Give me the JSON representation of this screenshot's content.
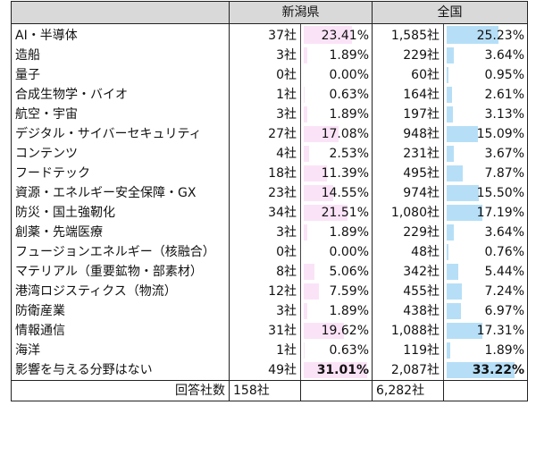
{
  "chart_data": {
    "type": "table",
    "title": "",
    "columns": [
      "",
      "新潟県 (社)",
      "新潟県 (%)",
      "全国 (社)",
      "全国 (%)"
    ],
    "groups": [
      "新潟県",
      "全国"
    ],
    "categories": [
      "AI・半導体",
      "造船",
      "量子",
      "合成生物学・バイオ",
      "航空・宇宙",
      "デジタル・サイバーセキュリティ",
      "コンテンツ",
      "フードテック",
      "資源・エネルギー安全保障・GX",
      "防災・国土強靭化",
      "創薬・先端医療",
      "フュージョンエネルギー（核融合）",
      "マテリアル（重要鉱物・部素材）",
      "港湾ロジスティクス（物流）",
      "防衛産業",
      "情報通信",
      "海洋",
      "影響を与える分野はない"
    ],
    "series": [
      {
        "name": "新潟県 社数",
        "values": [
          37,
          3,
          0,
          1,
          3,
          27,
          4,
          18,
          23,
          34,
          3,
          0,
          8,
          12,
          3,
          31,
          1,
          49
        ]
      },
      {
        "name": "新潟県 %",
        "values": [
          23.41,
          1.89,
          0.0,
          0.63,
          1.89,
          17.08,
          2.53,
          11.39,
          14.55,
          21.51,
          1.89,
          0.0,
          5.06,
          7.59,
          1.89,
          19.62,
          0.63,
          31.01
        ]
      },
      {
        "name": "全国 社数",
        "values": [
          1585,
          229,
          60,
          164,
          197,
          948,
          231,
          495,
          974,
          1080,
          229,
          48,
          342,
          455,
          438,
          1088,
          119,
          2087
        ]
      },
      {
        "name": "全国 %",
        "values": [
          25.23,
          3.64,
          0.95,
          2.61,
          3.13,
          15.09,
          3.67,
          7.87,
          15.5,
          17.19,
          3.64,
          0.76,
          5.44,
          7.24,
          6.97,
          17.31,
          1.89,
          33.22
        ]
      }
    ],
    "totals": {
      "label": "回答社数",
      "pref": 158,
      "national": 6282
    },
    "colors": {
      "pref_bar": "#fbe3f7",
      "national_bar": "#b6dff7",
      "header_bg": "#d9d9d9"
    }
  },
  "header": {
    "pref": "新潟県",
    "national": "全国"
  },
  "rows": [
    {
      "label": "AI・半導体",
      "pc": "37社",
      "pp": "23.41%",
      "pv": 23.41,
      "nc": "1,585社",
      "np": "25.23%",
      "nv": 25.23
    },
    {
      "label": "造船",
      "pc": "3社",
      "pp": "1.89%",
      "pv": 1.89,
      "nc": "229社",
      "np": "3.64%",
      "nv": 3.64
    },
    {
      "label": "量子",
      "pc": "0社",
      "pp": "0.00%",
      "pv": 0,
      "nc": "60社",
      "np": "0.95%",
      "nv": 0.95
    },
    {
      "label": "合成生物学・バイオ",
      "pc": "1社",
      "pp": "0.63%",
      "pv": 0.63,
      "nc": "164社",
      "np": "2.61%",
      "nv": 2.61
    },
    {
      "label": "航空・宇宙",
      "pc": "3社",
      "pp": "1.89%",
      "pv": 1.89,
      "nc": "197社",
      "np": "3.13%",
      "nv": 3.13
    },
    {
      "label": "デジタル・サイバーセキュリティ",
      "pc": "27社",
      "pp": "17.08%",
      "pv": 17.08,
      "nc": "948社",
      "np": "15.09%",
      "nv": 15.09
    },
    {
      "label": "コンテンツ",
      "pc": "4社",
      "pp": "2.53%",
      "pv": 2.53,
      "nc": "231社",
      "np": "3.67%",
      "nv": 3.67
    },
    {
      "label": "フードテック",
      "pc": "18社",
      "pp": "11.39%",
      "pv": 11.39,
      "nc": "495社",
      "np": "7.87%",
      "nv": 7.87
    },
    {
      "label": "資源・エネルギー安全保障・GX",
      "pc": "23社",
      "pp": "14.55%",
      "pv": 14.55,
      "nc": "974社",
      "np": "15.50%",
      "nv": 15.5
    },
    {
      "label": "防災・国土強靭化",
      "pc": "34社",
      "pp": "21.51%",
      "pv": 21.51,
      "nc": "1,080社",
      "np": "17.19%",
      "nv": 17.19
    },
    {
      "label": "創薬・先端医療",
      "pc": "3社",
      "pp": "1.89%",
      "pv": 1.89,
      "nc": "229社",
      "np": "3.64%",
      "nv": 3.64
    },
    {
      "label": "フュージョンエネルギー（核融合）",
      "pc": "0社",
      "pp": "0.00%",
      "pv": 0,
      "nc": "48社",
      "np": "0.76%",
      "nv": 0.76
    },
    {
      "label": "マテリアル（重要鉱物・部素材）",
      "pc": "8社",
      "pp": "5.06%",
      "pv": 5.06,
      "nc": "342社",
      "np": "5.44%",
      "nv": 5.44
    },
    {
      "label": "港湾ロジスティクス（物流）",
      "pc": "12社",
      "pp": "7.59%",
      "pv": 7.59,
      "nc": "455社",
      "np": "7.24%",
      "nv": 7.24
    },
    {
      "label": "防衛産業",
      "pc": "3社",
      "pp": "1.89%",
      "pv": 1.89,
      "nc": "438社",
      "np": "6.97%",
      "nv": 6.97
    },
    {
      "label": "情報通信",
      "pc": "31社",
      "pp": "19.62%",
      "pv": 19.62,
      "nc": "1,088社",
      "np": "17.31%",
      "nv": 17.31
    },
    {
      "label": "海洋",
      "pc": "1社",
      "pp": "0.63%",
      "pv": 0.63,
      "nc": "119社",
      "np": "1.89%",
      "nv": 1.89
    },
    {
      "label": "影響を与える分野はない",
      "pc": "49社",
      "pp": "31.01%",
      "pv": 31.01,
      "nc": "2,087社",
      "np": "33.22%",
      "nv": 33.22,
      "bold": true
    }
  ],
  "total": {
    "label": "回答社数",
    "pc": "158社",
    "nc": "6,282社"
  },
  "bar_scale_max": 100
}
